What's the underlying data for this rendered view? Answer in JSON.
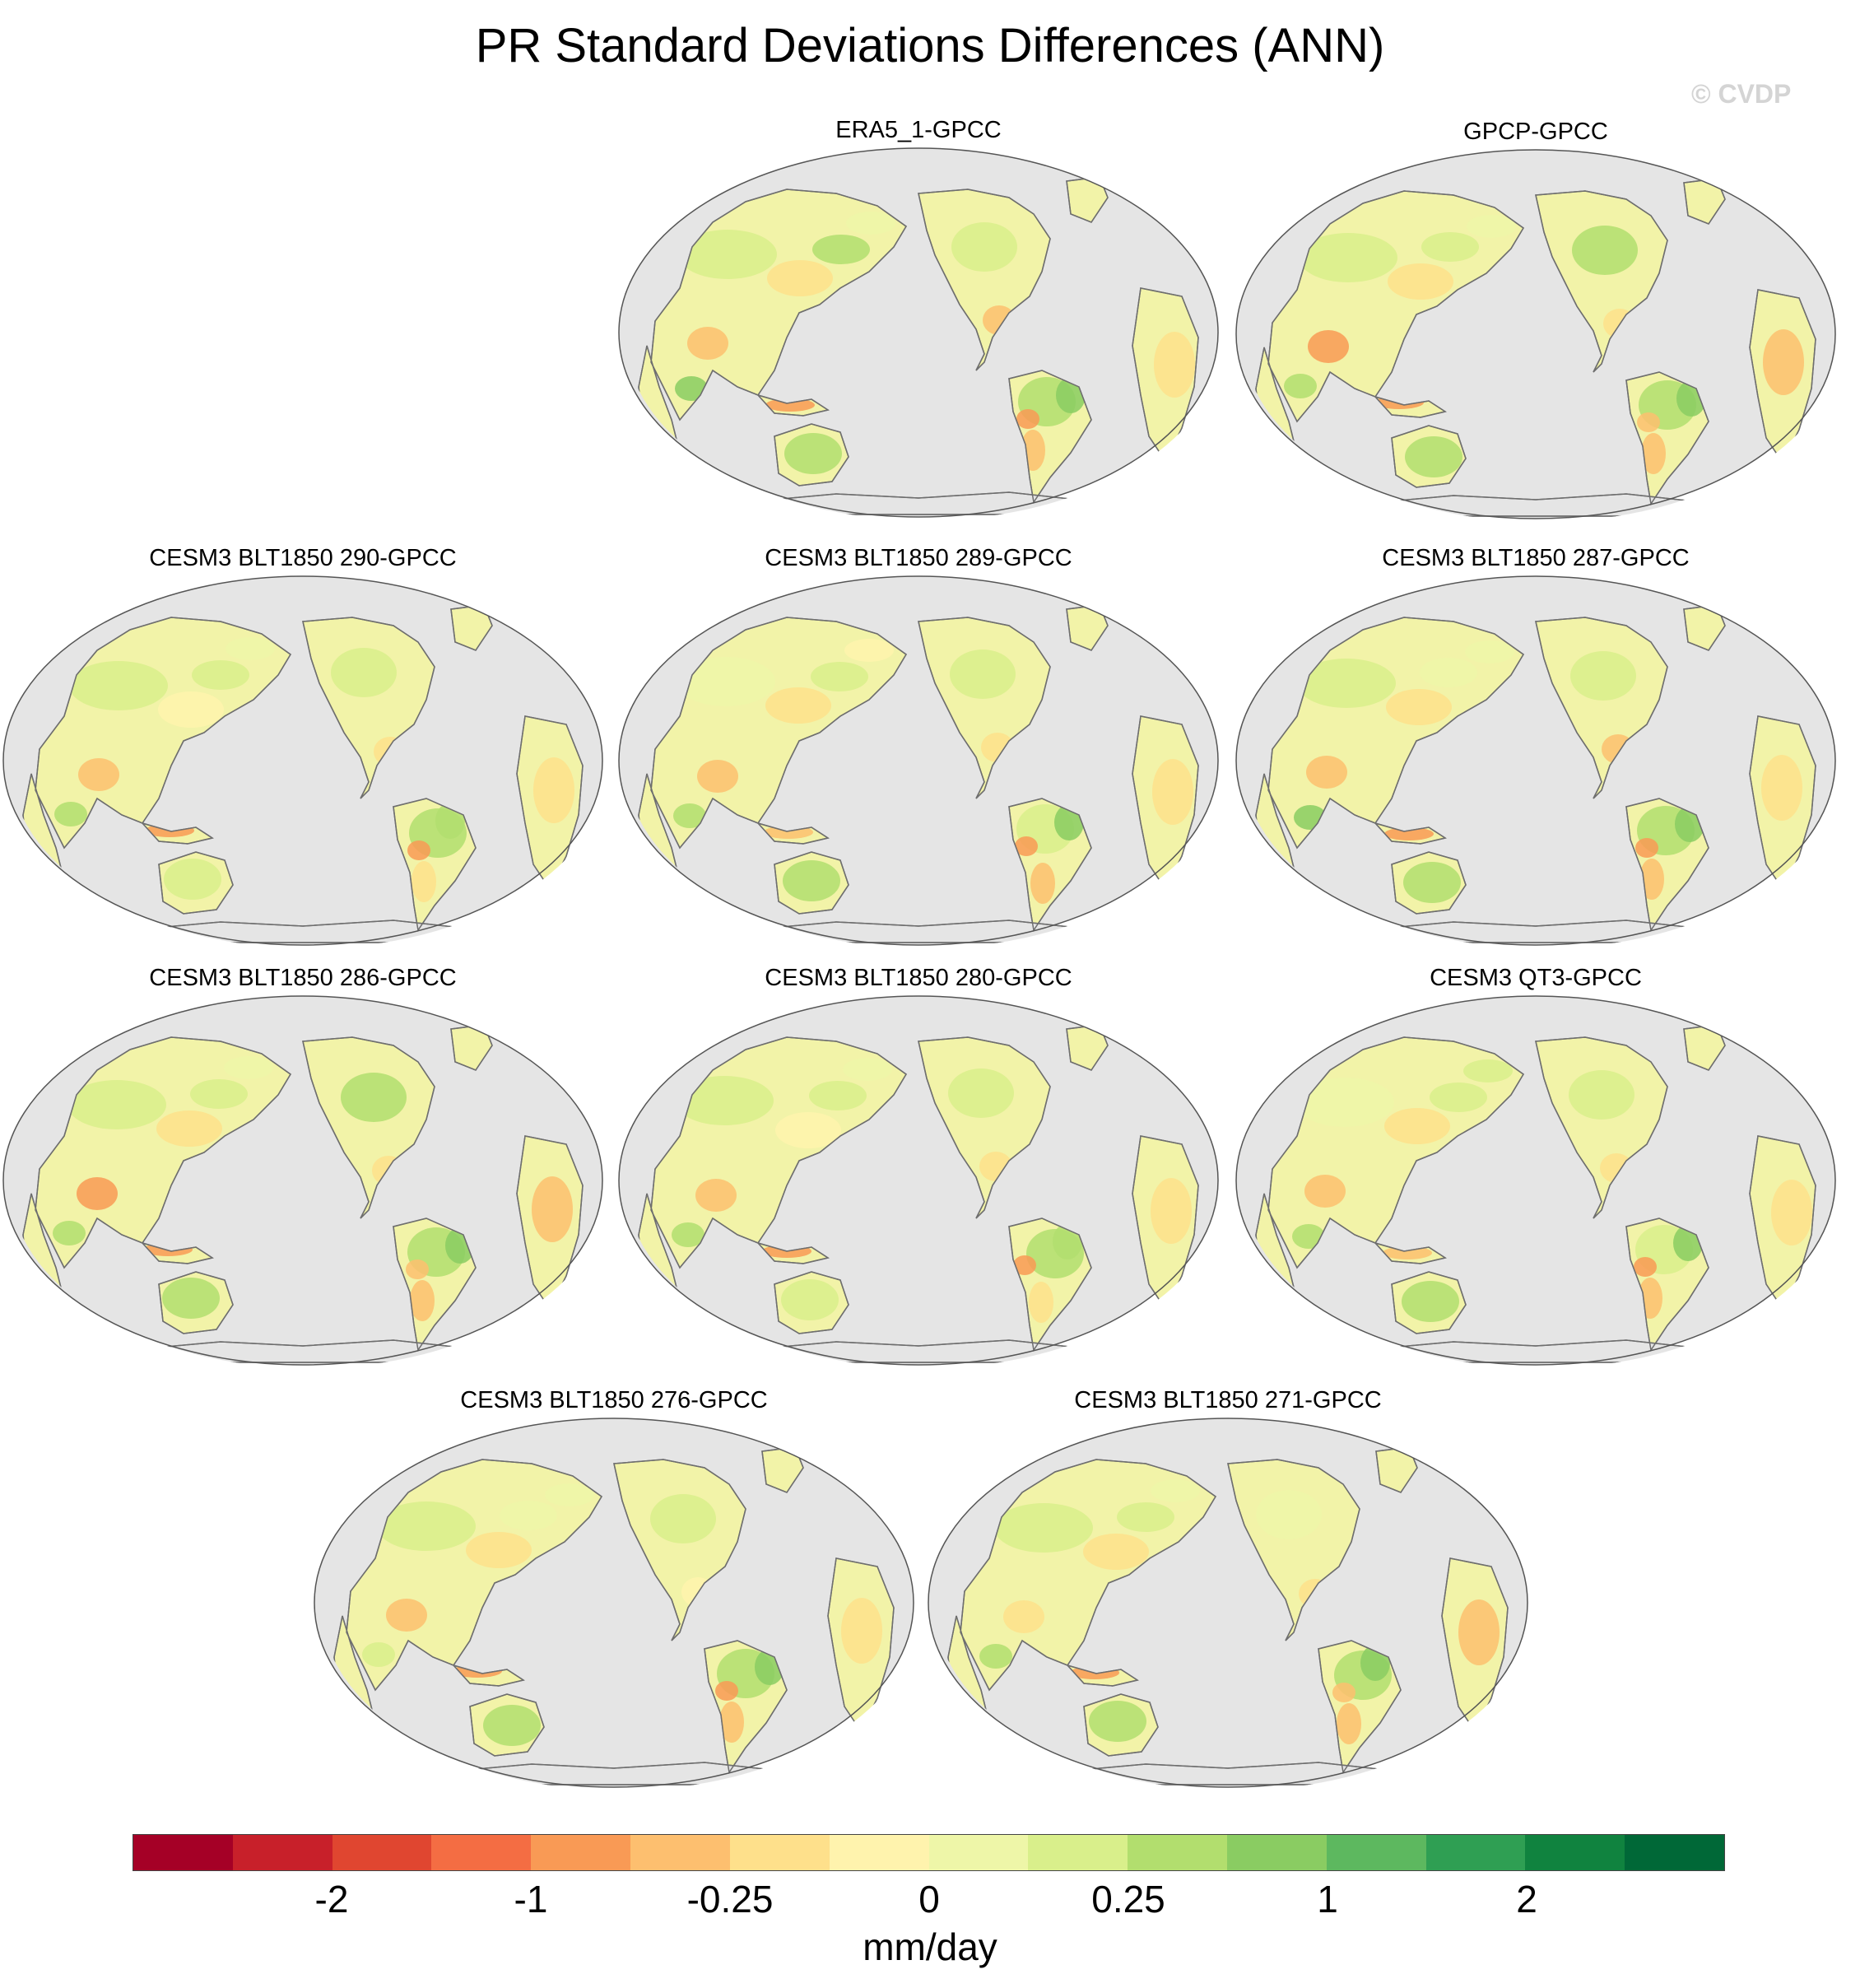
{
  "title": "PR Standard Deviations Differences (ANN)",
  "watermark": "© CVDP",
  "panels": [
    {
      "label": "ERA5_1-GPCC"
    },
    {
      "label": "GPCP-GPCC"
    },
    {
      "label": "CESM3 BLT1850 290-GPCC"
    },
    {
      "label": "CESM3 BLT1850 289-GPCC"
    },
    {
      "label": "CESM3 BLT1850 287-GPCC"
    },
    {
      "label": "CESM3 BLT1850 286-GPCC"
    },
    {
      "label": "CESM3 BLT1850 280-GPCC"
    },
    {
      "label": "CESM3 QT3-GPCC"
    },
    {
      "label": "CESM3 BLT1850 276-GPCC"
    },
    {
      "label": "CESM3 BLT1850 271-GPCC"
    }
  ],
  "colorbar": {
    "colors": [
      "#a50026",
      "#c8202a",
      "#e04630",
      "#f46d43",
      "#f99a55",
      "#fdbf6f",
      "#fee08b",
      "#fff3ad",
      "#eef6a8",
      "#d9ef8b",
      "#b2de6e",
      "#8acc62",
      "#5db85f",
      "#2f9f53",
      "#10833f",
      "#006837"
    ],
    "tick_labels": [
      "-2",
      "-1",
      "-0.25",
      "0",
      "0.25",
      "1",
      "2"
    ],
    "units": "mm/day"
  },
  "palette": {
    "ocean": "#e5e5e5",
    "land": "#f2f3a8",
    "coast": "#6e6e6e"
  }
}
